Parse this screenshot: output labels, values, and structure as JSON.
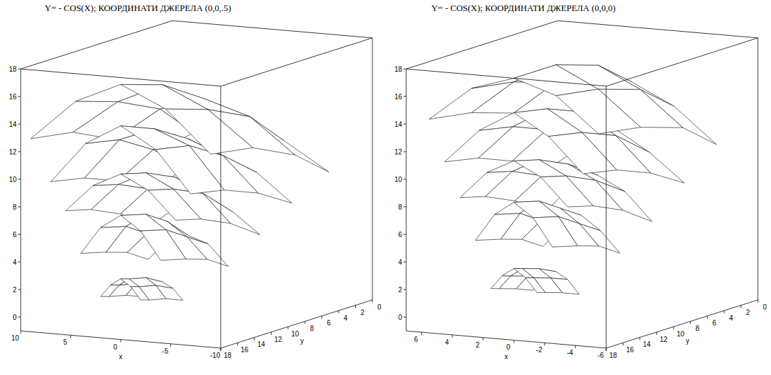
{
  "chart_data": [
    {
      "type": "surface3d",
      "title": "Y= - COS(X); КООРДИНАТИ ДЖЕРЕЛА (0,0,.5)",
      "x_label": "x",
      "y_label": "y",
      "color": "#000000",
      "xlim": [
        -10,
        10
      ],
      "xticks": [
        10,
        5,
        0,
        -5,
        -10
      ],
      "ylim": [
        0,
        18
      ],
      "yticks": [
        18,
        16,
        14,
        12,
        10,
        8,
        6,
        4,
        2,
        0
      ],
      "zlim": [
        -1,
        18
      ],
      "zticks": [
        0,
        2,
        4,
        6,
        8,
        10,
        12,
        14,
        16,
        18
      ],
      "surfaces": [
        {
          "x": [
            -9,
            -4.5,
            0,
            4.5,
            9
          ],
          "y": [
            4,
            8,
            13,
            18
          ],
          "z": [
            [
              9,
              11,
              12,
              11,
              9
            ],
            [
              11,
              13.5,
              14.5,
              13.5,
              11
            ],
            [
              12.5,
              15,
              16.5,
              15,
              12.5
            ],
            [
              13,
              16,
              17.5,
              16,
              13
            ]
          ]
        },
        {
          "x": [
            -7,
            -3.5,
            0,
            3.5,
            7
          ],
          "y": [
            6,
            10,
            14,
            18
          ],
          "z": [
            [
              7,
              9,
              10,
              9,
              7
            ],
            [
              8.5,
              11,
              12,
              11,
              8.5
            ],
            [
              9.5,
              12.5,
              13.5,
              12.5,
              9.5
            ],
            [
              10,
              13,
              14.5,
              13,
              10
            ]
          ]
        },
        {
          "x": [
            -5.5,
            -2.75,
            0,
            2.75,
            5.5
          ],
          "y": [
            8,
            11.5,
            15,
            18
          ],
          "z": [
            [
              5,
              6.5,
              7.5,
              6.5,
              5
            ],
            [
              6.5,
              8.5,
              9.5,
              8.5,
              6.5
            ],
            [
              7.5,
              9.5,
              10.5,
              9.5,
              7.5
            ],
            [
              8,
              10,
              11,
              10,
              8
            ]
          ]
        },
        {
          "x": [
            -4,
            -2,
            0,
            2,
            4
          ],
          "y": [
            10,
            12.5,
            15,
            18
          ],
          "z": [
            [
              3,
              4.5,
              5,
              4.5,
              3
            ],
            [
              4,
              5.5,
              6.5,
              5.5,
              4
            ],
            [
              4.5,
              6.5,
              7.5,
              6.5,
              4.5
            ],
            [
              5,
              7,
              8,
              7,
              5
            ]
          ]
        },
        {
          "x": [
            -2,
            -1,
            0,
            1,
            2
          ],
          "y": [
            13,
            15,
            17,
            18
          ],
          "z": [
            [
              1,
              1.8,
              2.2,
              1.8,
              1
            ],
            [
              1.5,
              2.4,
              2.9,
              2.4,
              1.5
            ],
            [
              1.8,
              2.7,
              3.2,
              2.7,
              1.8
            ],
            [
              2,
              2.9,
              3.4,
              2.9,
              2
            ]
          ]
        }
      ]
    },
    {
      "type": "surface3d",
      "title": "Y= - COS(X); КООРДИНАТИ ДЖЕРЕЛА (0,0,0)",
      "x_label": "x",
      "y_label": "y",
      "color": "#000000",
      "xlim": [
        -6,
        7
      ],
      "xticks": [
        6,
        4,
        2,
        0,
        -2,
        -4,
        -6
      ],
      "ylim": [
        0,
        18
      ],
      "yticks": [
        18,
        16,
        14,
        12,
        10,
        8,
        6,
        4,
        2,
        0
      ],
      "zlim": [
        -1,
        18
      ],
      "zticks": [
        0,
        2,
        4,
        6,
        8,
        10,
        12,
        14,
        16,
        18
      ],
      "surfaces": [
        {
          "x": [
            -5.5,
            -2.75,
            0,
            2.75,
            5.5
          ],
          "y": [
            4,
            8,
            13,
            18
          ],
          "z": [
            [
              11,
              13.5,
              15,
              13.5,
              11
            ],
            [
              13,
              15.5,
              17,
              15.5,
              13
            ],
            [
              14,
              16.5,
              18,
              16.5,
              14
            ],
            [
              14.5,
              17,
              18,
              17,
              14.5
            ]
          ]
        },
        {
          "x": [
            -4.5,
            -2.25,
            0,
            2.25,
            4.5
          ],
          "y": [
            6,
            10,
            14,
            18
          ],
          "z": [
            [
              8.5,
              10.5,
              12,
              10.5,
              8.5
            ],
            [
              10,
              12.5,
              14,
              12.5,
              10
            ],
            [
              11,
              13.5,
              15,
              13.5,
              11
            ],
            [
              11.5,
              14,
              15.5,
              14,
              11.5
            ]
          ]
        },
        {
          "x": [
            -3.5,
            -1.75,
            0,
            1.75,
            3.5
          ],
          "y": [
            8,
            11.5,
            15,
            18
          ],
          "z": [
            [
              6,
              8,
              9,
              8,
              6
            ],
            [
              7.5,
              9.5,
              10.5,
              9.5,
              7.5
            ],
            [
              8.5,
              10.5,
              11.5,
              10.5,
              8.5
            ],
            [
              9,
              11,
              12,
              11,
              9
            ]
          ]
        },
        {
          "x": [
            -2.5,
            -1.25,
            0,
            1.25,
            2.5
          ],
          "y": [
            10,
            12.5,
            15,
            18
          ],
          "z": [
            [
              4,
              5.5,
              6.5,
              5.5,
              4
            ],
            [
              5,
              6.5,
              7.5,
              6.5,
              5
            ],
            [
              5.5,
              7.5,
              8.5,
              7.5,
              5.5
            ],
            [
              6,
              8,
              9,
              8,
              6
            ]
          ]
        },
        {
          "x": [
            -1.5,
            -0.75,
            0,
            0.75,
            1.5
          ],
          "y": [
            13,
            15,
            17,
            18
          ],
          "z": [
            [
              1.5,
              2.5,
              3,
              2.5,
              1.5
            ],
            [
              2,
              3,
              3.6,
              3,
              2
            ],
            [
              2.4,
              3.4,
              4,
              3.4,
              2.4
            ],
            [
              2.6,
              3.6,
              4.2,
              3.6,
              2.6
            ]
          ]
        }
      ]
    }
  ]
}
